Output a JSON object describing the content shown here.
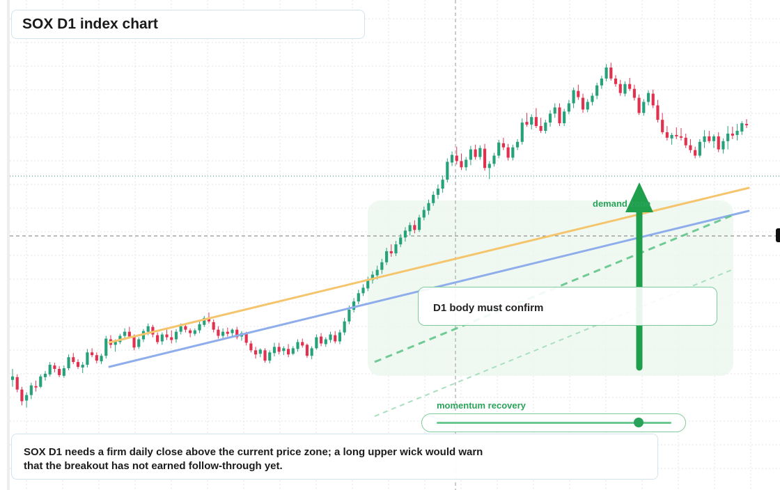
{
  "header": {
    "title": "SOX D1 index chart"
  },
  "annotations": {
    "demand_zone_label": "demand zone",
    "confirm_label": "D1 body must confirm",
    "momentum_label": "momentum recovery",
    "momentum_level": 0.86,
    "note": "SOX D1 needs a firm daily close above the current price zone; a long upper wick would warn that the breakout has not earned follow-through yet."
  },
  "colors": {
    "up": "#26a17a",
    "down": "#e0324f",
    "trend_upper": "#f5c56e",
    "trend_lower": "#8eadea",
    "accent_green": "#2aa35a",
    "zone_fill": "#eaf7ee"
  },
  "chart_data": {
    "type": "candlestick",
    "title": "SOX D1 index chart",
    "series_ohlc": [
      [
        160,
        176,
        150,
        165
      ],
      [
        164,
        168,
        142,
        146
      ],
      [
        146,
        150,
        123,
        129
      ],
      [
        130,
        142,
        120,
        138
      ],
      [
        138,
        156,
        132,
        152
      ],
      [
        151,
        159,
        143,
        149
      ],
      [
        150,
        168,
        148,
        165
      ],
      [
        164,
        173,
        159,
        169
      ],
      [
        168,
        186,
        165,
        182
      ],
      [
        181,
        185,
        171,
        176
      ],
      [
        176,
        180,
        164,
        167
      ],
      [
        166,
        181,
        163,
        177
      ],
      [
        177,
        197,
        174,
        193
      ],
      [
        193,
        199,
        183,
        186
      ],
      [
        186,
        190,
        176,
        179
      ],
      [
        178,
        186,
        170,
        182
      ],
      [
        182,
        205,
        178,
        200
      ],
      [
        200,
        206,
        193,
        196
      ],
      [
        196,
        200,
        184,
        188
      ],
      [
        187,
        198,
        183,
        195
      ],
      [
        195,
        224,
        191,
        220
      ],
      [
        219,
        225,
        206,
        211
      ],
      [
        211,
        219,
        201,
        216
      ],
      [
        215,
        227,
        212,
        224
      ],
      [
        224,
        235,
        218,
        230
      ],
      [
        230,
        237,
        220,
        223
      ],
      [
        222,
        226,
        203,
        207
      ],
      [
        208,
        222,
        205,
        219
      ],
      [
        219,
        234,
        215,
        231
      ],
      [
        230,
        242,
        225,
        238
      ],
      [
        237,
        240,
        222,
        226
      ],
      [
        225,
        229,
        212,
        215
      ],
      [
        216,
        229,
        211,
        226
      ],
      [
        226,
        233,
        218,
        222
      ],
      [
        222,
        232,
        213,
        218
      ],
      [
        219,
        234,
        214,
        230
      ],
      [
        230,
        242,
        226,
        238
      ],
      [
        238,
        241,
        229,
        233
      ],
      [
        232,
        235,
        222,
        228
      ],
      [
        227,
        235,
        224,
        232
      ],
      [
        232,
        246,
        228,
        241
      ],
      [
        240,
        253,
        237,
        250
      ],
      [
        250,
        258,
        242,
        245
      ],
      [
        244,
        248,
        229,
        233
      ],
      [
        233,
        238,
        220,
        224
      ],
      [
        224,
        235,
        219,
        230
      ],
      [
        230,
        236,
        223,
        227
      ],
      [
        228,
        235,
        222,
        233
      ],
      [
        233,
        237,
        219,
        222
      ],
      [
        223,
        231,
        217,
        228
      ],
      [
        228,
        230,
        210,
        214
      ],
      [
        213,
        217,
        200,
        203
      ],
      [
        203,
        208,
        191,
        197
      ],
      [
        198,
        206,
        193,
        204
      ],
      [
        203,
        206,
        185,
        188
      ],
      [
        188,
        203,
        184,
        200
      ],
      [
        199,
        214,
        194,
        208
      ],
      [
        208,
        214,
        197,
        201
      ],
      [
        202,
        209,
        196,
        206
      ],
      [
        205,
        212,
        193,
        197
      ],
      [
        198,
        209,
        196,
        206
      ],
      [
        205,
        219,
        201,
        215
      ],
      [
        215,
        220,
        207,
        210
      ],
      [
        211,
        213,
        192,
        195
      ],
      [
        195,
        209,
        190,
        206
      ],
      [
        206,
        226,
        204,
        222
      ],
      [
        223,
        228,
        209,
        213
      ],
      [
        212,
        222,
        208,
        219
      ],
      [
        218,
        230,
        214,
        226
      ],
      [
        225,
        231,
        213,
        216
      ],
      [
        216,
        233,
        212,
        229
      ],
      [
        229,
        250,
        225,
        245
      ],
      [
        245,
        268,
        241,
        262
      ],
      [
        262,
        279,
        258,
        274
      ],
      [
        274,
        291,
        270,
        286
      ],
      [
        286,
        299,
        282,
        294
      ],
      [
        293,
        310,
        289,
        306
      ],
      [
        305,
        318,
        300,
        313
      ],
      [
        312,
        326,
        306,
        320
      ],
      [
        320,
        336,
        314,
        331
      ],
      [
        331,
        352,
        327,
        347
      ],
      [
        347,
        357,
        339,
        344
      ],
      [
        344,
        362,
        340,
        357
      ],
      [
        357,
        372,
        353,
        367
      ],
      [
        367,
        382,
        361,
        377
      ],
      [
        376,
        389,
        370,
        385
      ],
      [
        385,
        392,
        373,
        378
      ],
      [
        378,
        400,
        375,
        396
      ],
      [
        396,
        412,
        392,
        407
      ],
      [
        406,
        422,
        400,
        417
      ],
      [
        417,
        434,
        413,
        429
      ],
      [
        429,
        444,
        423,
        438
      ],
      [
        438,
        457,
        432,
        451
      ],
      [
        451,
        482,
        447,
        477
      ],
      [
        476,
        492,
        471,
        487
      ],
      [
        486,
        499,
        473,
        478
      ],
      [
        478,
        489,
        465,
        469
      ],
      [
        469,
        484,
        464,
        480
      ],
      [
        480,
        500,
        472,
        495
      ],
      [
        495,
        502,
        480,
        484
      ],
      [
        484,
        501,
        480,
        497
      ],
      [
        496,
        503,
        464,
        468
      ],
      [
        468,
        478,
        452,
        474
      ],
      [
        474,
        490,
        470,
        486
      ],
      [
        486,
        509,
        482,
        505
      ],
      [
        504,
        512,
        494,
        498
      ],
      [
        498,
        503,
        479,
        483
      ],
      [
        483,
        502,
        479,
        498
      ],
      [
        498,
        510,
        494,
        506
      ],
      [
        506,
        540,
        502,
        534
      ],
      [
        535,
        548,
        528,
        531
      ],
      [
        531,
        546,
        524,
        542
      ],
      [
        542,
        555,
        526,
        529
      ],
      [
        529,
        541,
        519,
        522
      ],
      [
        522,
        538,
        518,
        534
      ],
      [
        534,
        552,
        528,
        547
      ],
      [
        547,
        562,
        541,
        556
      ],
      [
        556,
        562,
        529,
        533
      ],
      [
        533,
        554,
        529,
        550
      ],
      [
        550,
        567,
        546,
        562
      ],
      [
        562,
        585,
        555,
        581
      ],
      [
        580,
        589,
        567,
        571
      ],
      [
        570,
        576,
        548,
        553
      ],
      [
        553,
        568,
        549,
        564
      ],
      [
        564,
        577,
        559,
        573
      ],
      [
        573,
        592,
        568,
        588
      ],
      [
        588,
        602,
        583,
        598
      ],
      [
        598,
        619,
        594,
        614
      ],
      [
        614,
        621,
        595,
        598
      ],
      [
        598,
        603,
        586,
        590
      ],
      [
        590,
        596,
        573,
        577
      ],
      [
        576,
        594,
        572,
        590
      ],
      [
        590,
        599,
        580,
        583
      ],
      [
        583,
        589,
        566,
        570
      ],
      [
        570,
        575,
        545,
        548
      ],
      [
        548,
        568,
        544,
        564
      ],
      [
        564,
        581,
        559,
        577
      ],
      [
        576,
        582,
        555,
        559
      ],
      [
        559,
        567,
        534,
        538
      ],
      [
        538,
        548,
        517,
        520
      ],
      [
        520,
        529,
        508,
        512
      ],
      [
        511,
        519,
        502,
        516
      ],
      [
        516,
        527,
        510,
        514
      ],
      [
        514,
        526,
        508,
        512
      ],
      [
        512,
        518,
        497,
        501
      ],
      [
        501,
        510,
        490,
        494
      ],
      [
        494,
        499,
        482,
        486
      ],
      [
        486,
        510,
        483,
        506
      ],
      [
        506,
        523,
        497,
        514
      ],
      [
        514,
        522,
        504,
        507
      ],
      [
        507,
        517,
        497,
        514
      ],
      [
        514,
        520,
        491,
        495
      ],
      [
        495,
        511,
        489,
        507
      ],
      [
        507,
        529,
        495,
        518
      ],
      [
        518,
        528,
        510,
        515
      ],
      [
        516,
        532,
        508,
        522
      ],
      [
        521,
        536,
        516,
        533
      ],
      [
        532,
        539,
        526,
        530
      ]
    ],
    "trendlines": [
      "upper trend",
      "lower trend",
      "dashed support",
      "faint projection"
    ]
  }
}
